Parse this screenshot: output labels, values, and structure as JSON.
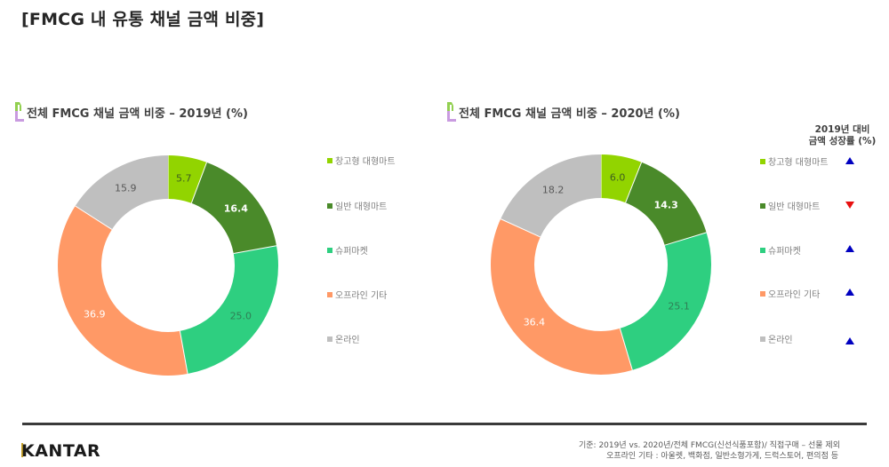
{
  "page": {
    "title": "[FMCG 내 유통 채널 금액 비중]"
  },
  "colors": {
    "warehouse_mart": "#92d400",
    "general_mart": "#4a8a2a",
    "supermarket": "#2ecf80",
    "offline_other": "#ff9966",
    "online": "#bfbfbf",
    "growth_up": "#0000c0",
    "growth_down": "#e81010"
  },
  "charts": {
    "y2019": {
      "title": "전체 FMCG 채널 금액 비중 – 2019년 (%)"
    },
    "y2020": {
      "title": "전체 FMCG 채널 금액 비중 – 2020년 (%)"
    }
  },
  "legend": {
    "items": [
      {
        "label": "창고형 대형마트",
        "color": "#92d400"
      },
      {
        "label": "일반 대형마트",
        "color": "#4a8a2a"
      },
      {
        "label": "슈퍼마켓",
        "color": "#2ecf80"
      },
      {
        "label": "오프라인 기타",
        "color": "#ff9966"
      },
      {
        "label": "온라인",
        "color": "#bfbfbf"
      }
    ]
  },
  "growth": {
    "header_line1": "2019년 대비",
    "header_line2": "금액 성장률 (%)",
    "indicators": [
      {
        "channel": "창고형 대형마트",
        "direction": "up",
        "icon": "triangle-up-icon"
      },
      {
        "channel": "일반 대형마트",
        "direction": "down",
        "icon": "triangle-down-icon"
      },
      {
        "channel": "슈퍼마켓",
        "direction": "up",
        "icon": "triangle-up-icon"
      },
      {
        "channel": "오프라인 기타",
        "direction": "up",
        "icon": "triangle-up-icon"
      },
      {
        "channel": "온라인",
        "direction": "up",
        "icon": "triangle-up-icon"
      }
    ]
  },
  "footer": {
    "logo": "KANTAR",
    "note_line1": "기준: 2019년 vs. 2020년/전체 FMCG(신선식품포함)/ 직접구매 – 선물 제외",
    "note_line2": "오프라인 기타 : 아울렛, 백화점, 일반소형가게, 드럭스토어, 편의점 등"
  },
  "chart_data": [
    {
      "type": "pie",
      "variant": "donut",
      "title": "전체 FMCG 채널 금액 비중 – 2019년 (%)",
      "categories": [
        "창고형 대형마트",
        "일반 대형마트",
        "슈퍼마켓",
        "오프라인 기타",
        "온라인"
      ],
      "values": [
        5.7,
        16.4,
        25.0,
        36.9,
        15.9
      ],
      "value_labels": [
        "5.7",
        "16.4",
        "25.0",
        "36.9",
        "15.9"
      ],
      "colors": [
        "#92d400",
        "#4a8a2a",
        "#2ecf80",
        "#ff9966",
        "#bfbfbf"
      ],
      "label_colors": [
        "#3f5f1f",
        "#ffffff",
        "#2f7f55",
        "#ffffff",
        "#595959"
      ],
      "start_angle": "12 o'clock",
      "direction": "clockwise",
      "legend_position": "right"
    },
    {
      "type": "pie",
      "variant": "donut",
      "title": "전체 FMCG 채널 금액 비중 – 2020년 (%)",
      "categories": [
        "창고형 대형마트",
        "일반 대형마트",
        "슈퍼마켓",
        "오프라인 기타",
        "온라인"
      ],
      "values": [
        6.0,
        14.3,
        25.1,
        36.4,
        18.2
      ],
      "value_labels": [
        "6.0",
        "14.3",
        "25.1",
        "36.4",
        "18.2"
      ],
      "colors": [
        "#92d400",
        "#4a8a2a",
        "#2ecf80",
        "#ff9966",
        "#bfbfbf"
      ],
      "label_colors": [
        "#3f5f1f",
        "#ffffff",
        "#2f7f55",
        "#ffffff",
        "#595959"
      ],
      "start_angle": "12 o'clock",
      "direction": "clockwise",
      "legend_position": "right",
      "growth_vs_2019": [
        "up",
        "down",
        "up",
        "up",
        "up"
      ]
    }
  ]
}
